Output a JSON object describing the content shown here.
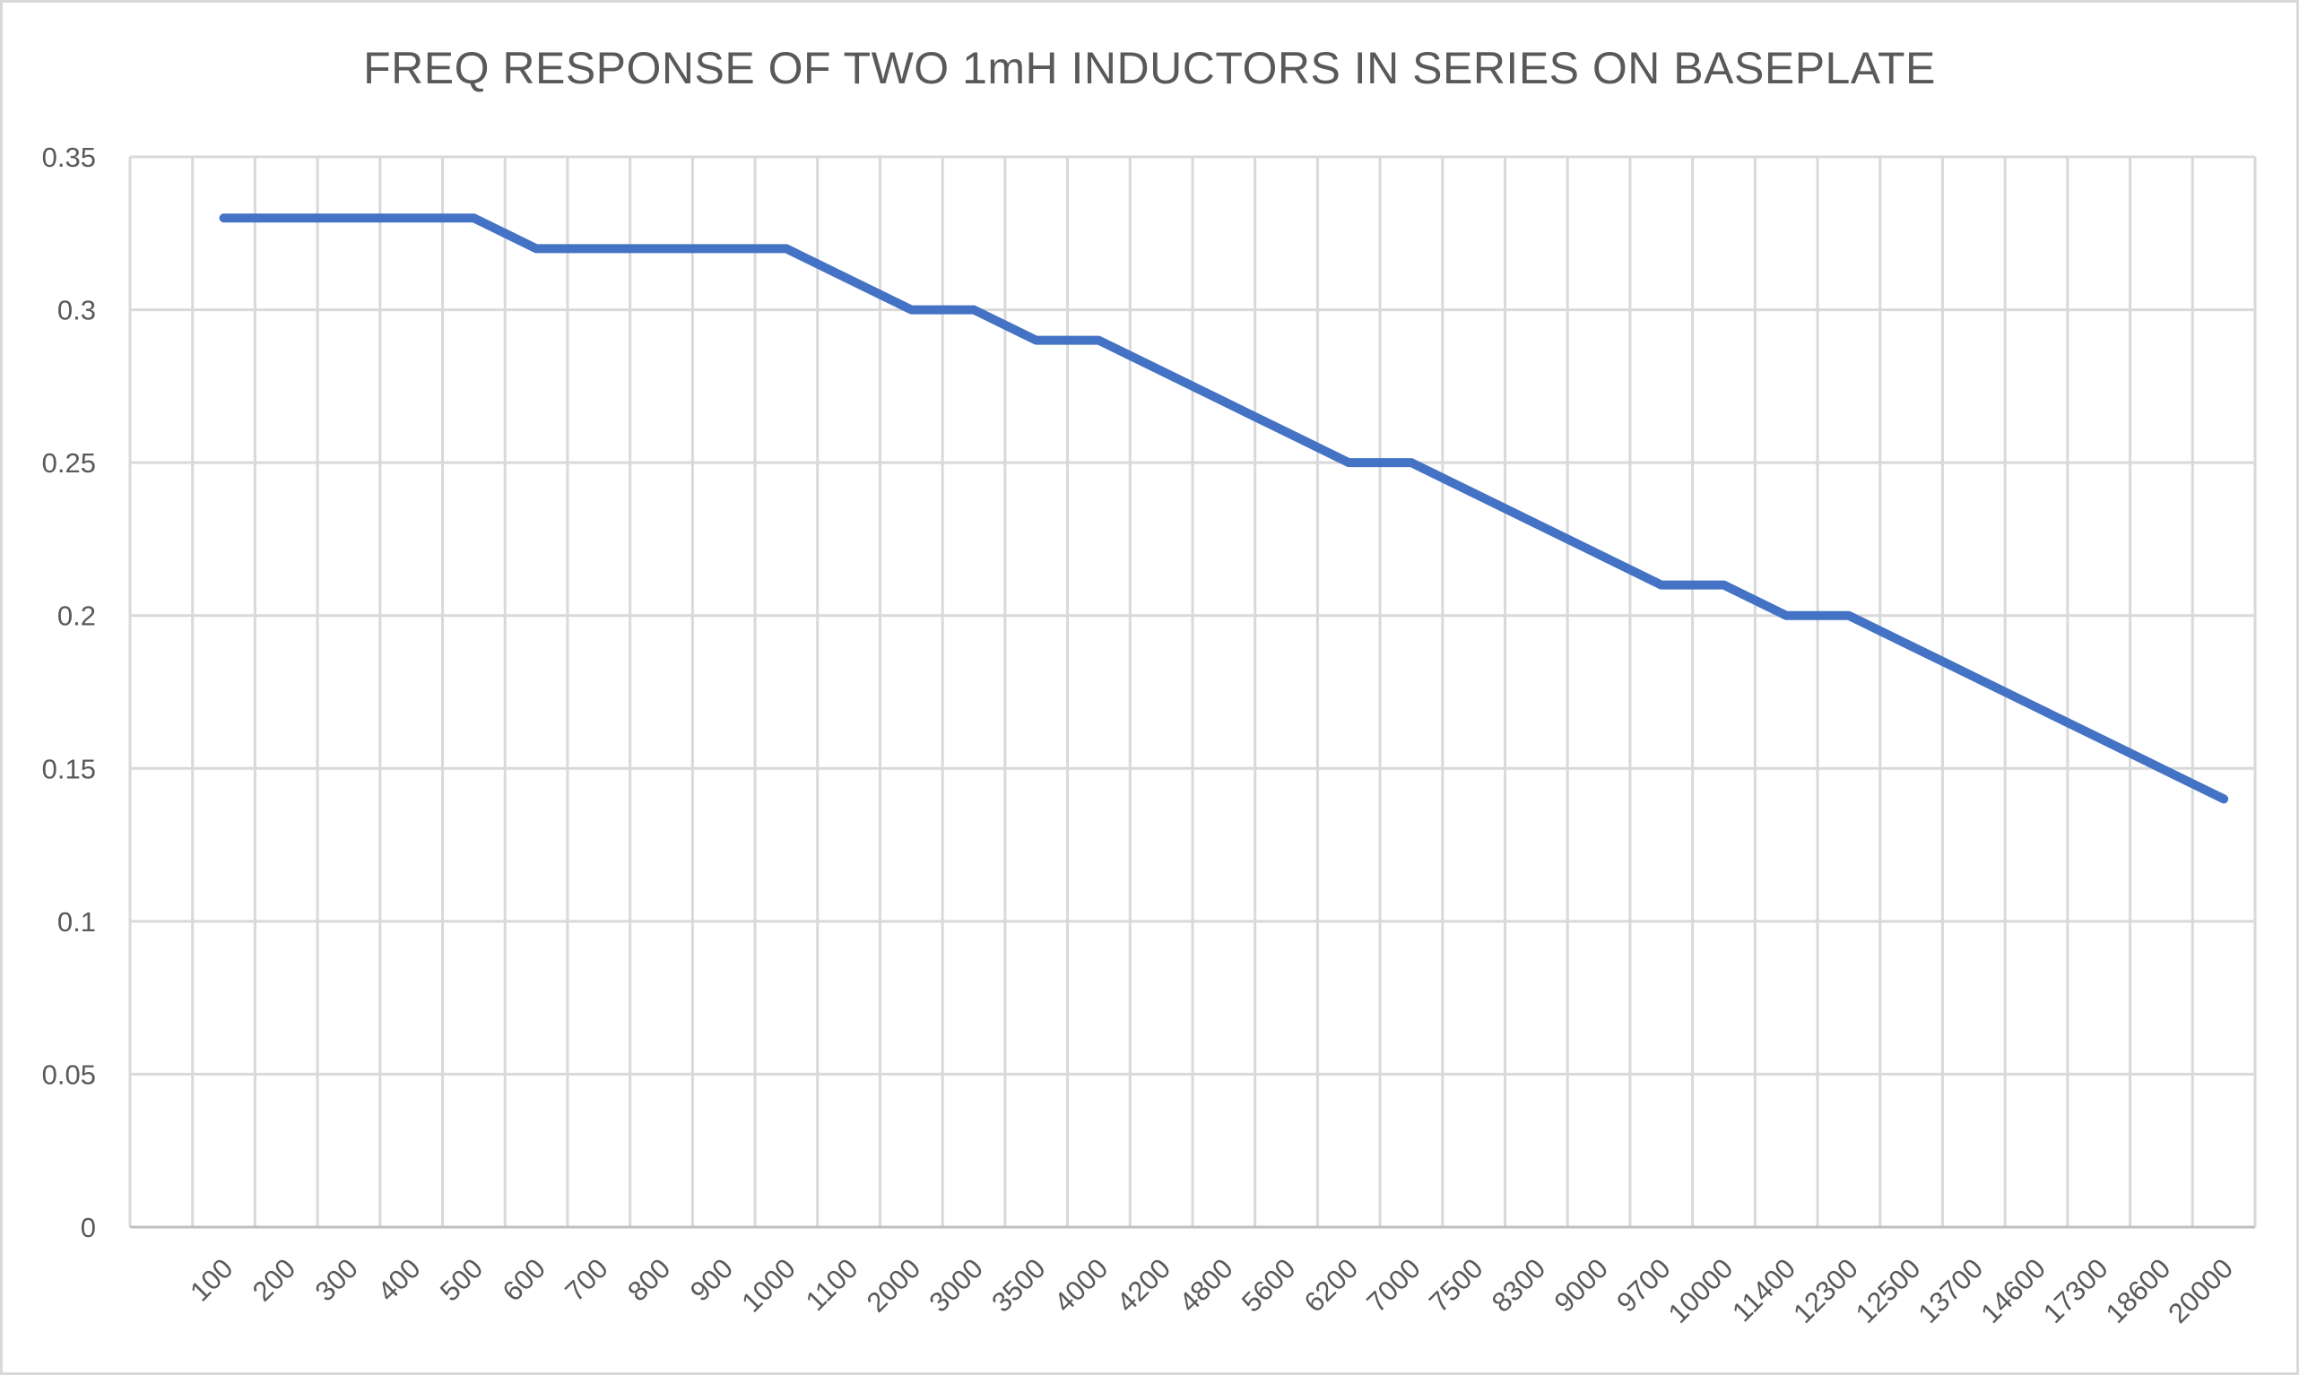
{
  "window": {
    "background": "#FFFFFF",
    "border_color": "#D9D9D9"
  },
  "chart_data": {
    "type": "line",
    "title": "FREQ RESPONSE OF TWO 1mH INDUCTORS IN SERIES ON BASEPLATE",
    "categories": [
      "100",
      "200",
      "300",
      "400",
      "500",
      "600",
      "700",
      "800",
      "900",
      "1000",
      "1100",
      "2000",
      "3000",
      "3500",
      "4000",
      "4200",
      "4800",
      "5600",
      "6200",
      "7000",
      "7500",
      "8300",
      "9000",
      "9700",
      "10000",
      "11400",
      "12300",
      "12500",
      "13700",
      "14600",
      "17300",
      "18600",
      "20000"
    ],
    "series": [
      {
        "name": "",
        "values": [
          0.33,
          0.33,
          0.33,
          0.33,
          0.33,
          0.32,
          0.32,
          0.32,
          0.32,
          0.32,
          0.31,
          0.3,
          0.3,
          0.29,
          0.29,
          0.28,
          0.27,
          0.26,
          0.25,
          0.25,
          0.24,
          0.23,
          0.22,
          0.21,
          0.21,
          0.2,
          0.2,
          0.19,
          0.18,
          0.17,
          0.16,
          0.15,
          0.14
        ]
      }
    ],
    "xlabel": "",
    "ylabel": "",
    "ylim": [
      0,
      0.35
    ],
    "ytick_labels": [
      "0",
      "0.05",
      "0.1",
      "0.15",
      "0.2",
      "0.25",
      "0.3",
      "0.35"
    ],
    "xtick_rotation_deg": 45,
    "grid": true,
    "legend": "none",
    "line_color": "#4472C4",
    "gridline_color": "#D9D9D9",
    "axis_line_color": "#BFBFBF",
    "text_color": "#595959"
  }
}
